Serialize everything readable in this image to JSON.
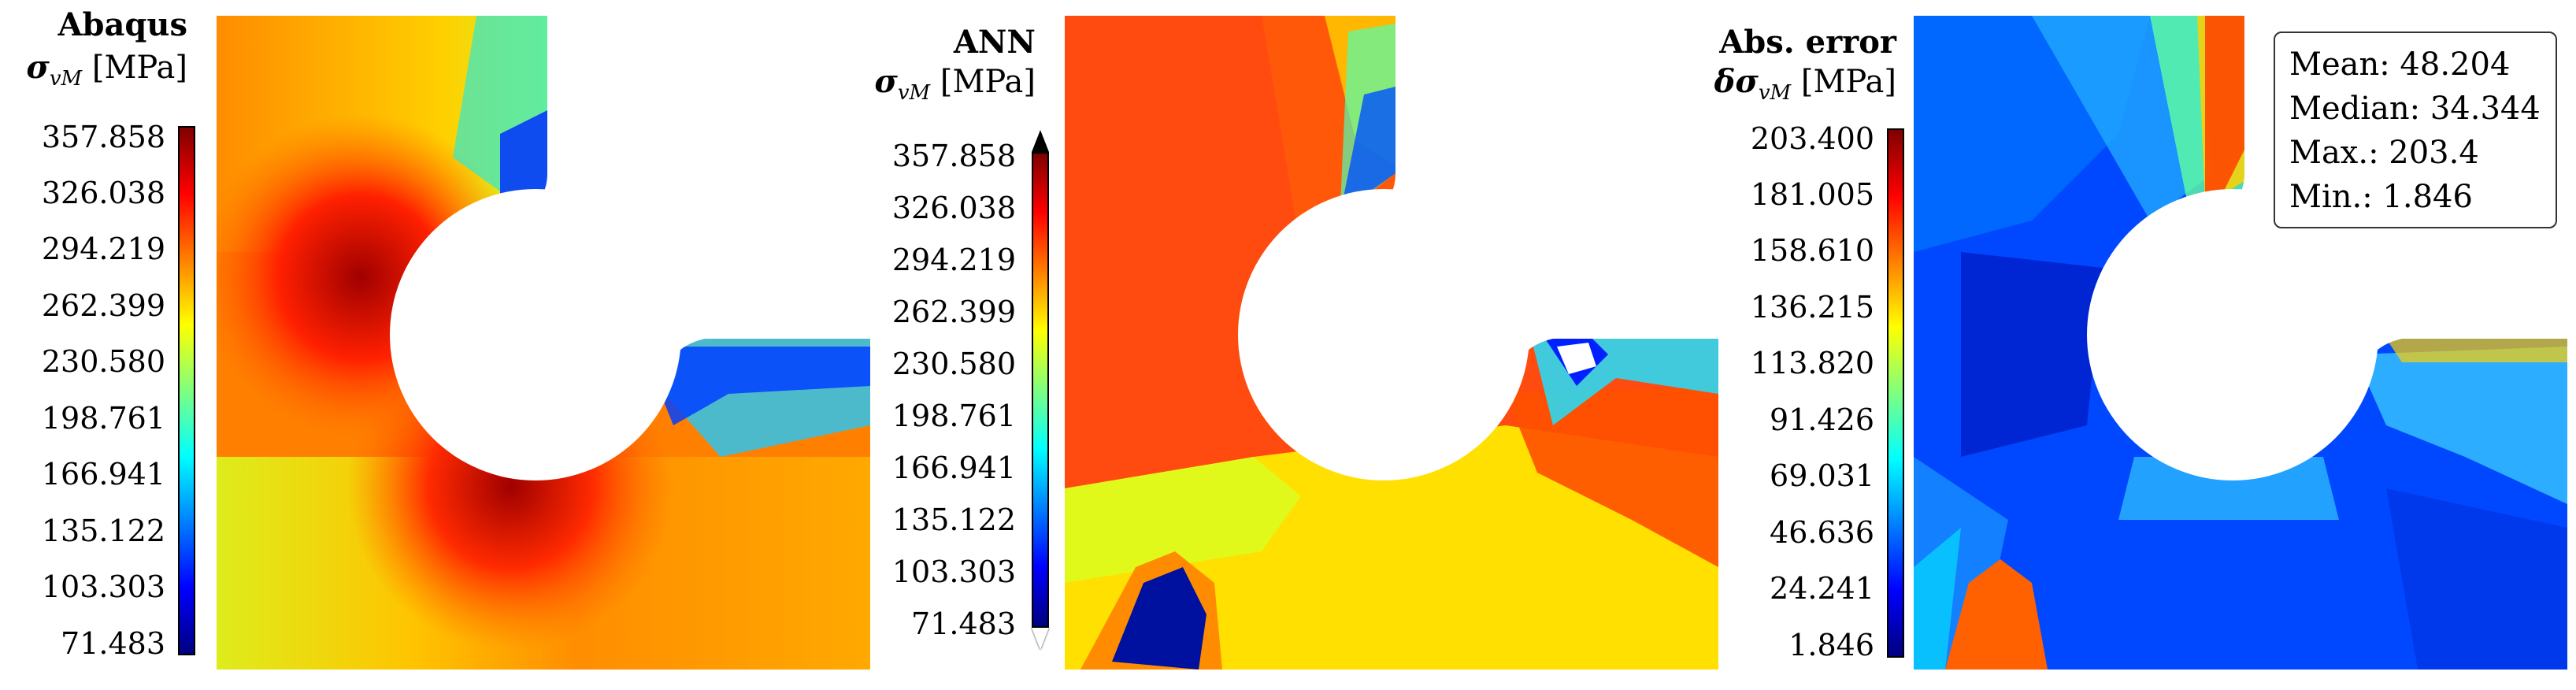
{
  "panels": [
    {
      "title": "Abaqus",
      "symbol": "σ",
      "symbol_sub": "vM",
      "unit": "[MPa]",
      "ticks": [
        "357.858",
        "326.038",
        "294.219",
        "262.399",
        "230.580",
        "198.761",
        "166.941",
        "135.122",
        "103.303",
        "71.483"
      ]
    },
    {
      "title": "ANN",
      "symbol": "σ",
      "symbol_sub": "vM",
      "unit": "[MPa]",
      "ticks": [
        "357.858",
        "326.038",
        "294.219",
        "262.399",
        "230.580",
        "198.761",
        "166.941",
        "135.122",
        "103.303",
        "71.483"
      ]
    },
    {
      "title": "Abs. error",
      "symbol": "δσ",
      "symbol_sub": "vM",
      "unit": "[MPa]",
      "ticks": [
        "203.400",
        "181.005",
        "158.610",
        "136.215",
        "113.820",
        "91.426",
        "69.031",
        "46.636",
        "24.241",
        "1.846"
      ]
    }
  ],
  "stats": {
    "mean": "Mean: 48.204",
    "median": "Median: 34.344",
    "max": "Max.: 203.4",
    "min": "Min.: 1.846"
  },
  "colormap": [
    "#00007f",
    "#0000ff",
    "#007fff",
    "#00ffff",
    "#7fff7f",
    "#ffff00",
    "#ff7f00",
    "#ff0000",
    "#7f0000"
  ]
}
